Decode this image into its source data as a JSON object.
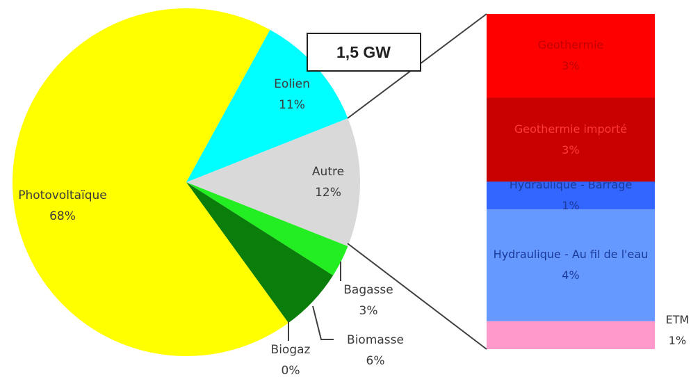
{
  "chart_data": [
    {
      "type": "pie",
      "categories": [
        "Autre",
        "Bagasse",
        "Biomasse",
        "Biogaz",
        "Photovoltaïque",
        "Eolien"
      ],
      "values": [
        12,
        3,
        6,
        0,
        68,
        11
      ],
      "value_labels": [
        "12%",
        "3%",
        "6%",
        "0%",
        "68%",
        "11%"
      ],
      "colors": [
        "#d9d9d9",
        "#22ee22",
        "#0a7d0a",
        "#055a05",
        "#ffff00",
        "#00ffff"
      ],
      "annotation": "1,5 GW"
    },
    {
      "type": "stacked-bar",
      "categories": [
        "Geothermie",
        "Geothermie importé",
        "Hydraulique - Barrage",
        "Hydraulique - Au fil de l'eau",
        "ETM"
      ],
      "values": [
        3,
        3,
        1,
        4,
        1
      ],
      "value_labels": [
        "3%",
        "3%",
        "1%",
        "4%",
        "1%"
      ],
      "colors": [
        "#ff0000",
        "#c80000",
        "#3366ff",
        "#6699ff",
        "#ff99cc"
      ],
      "text_colors": [
        "#c00000",
        "#ff3b3b",
        "#1a3a99",
        "#1a3a99",
        "#333333"
      ]
    }
  ]
}
